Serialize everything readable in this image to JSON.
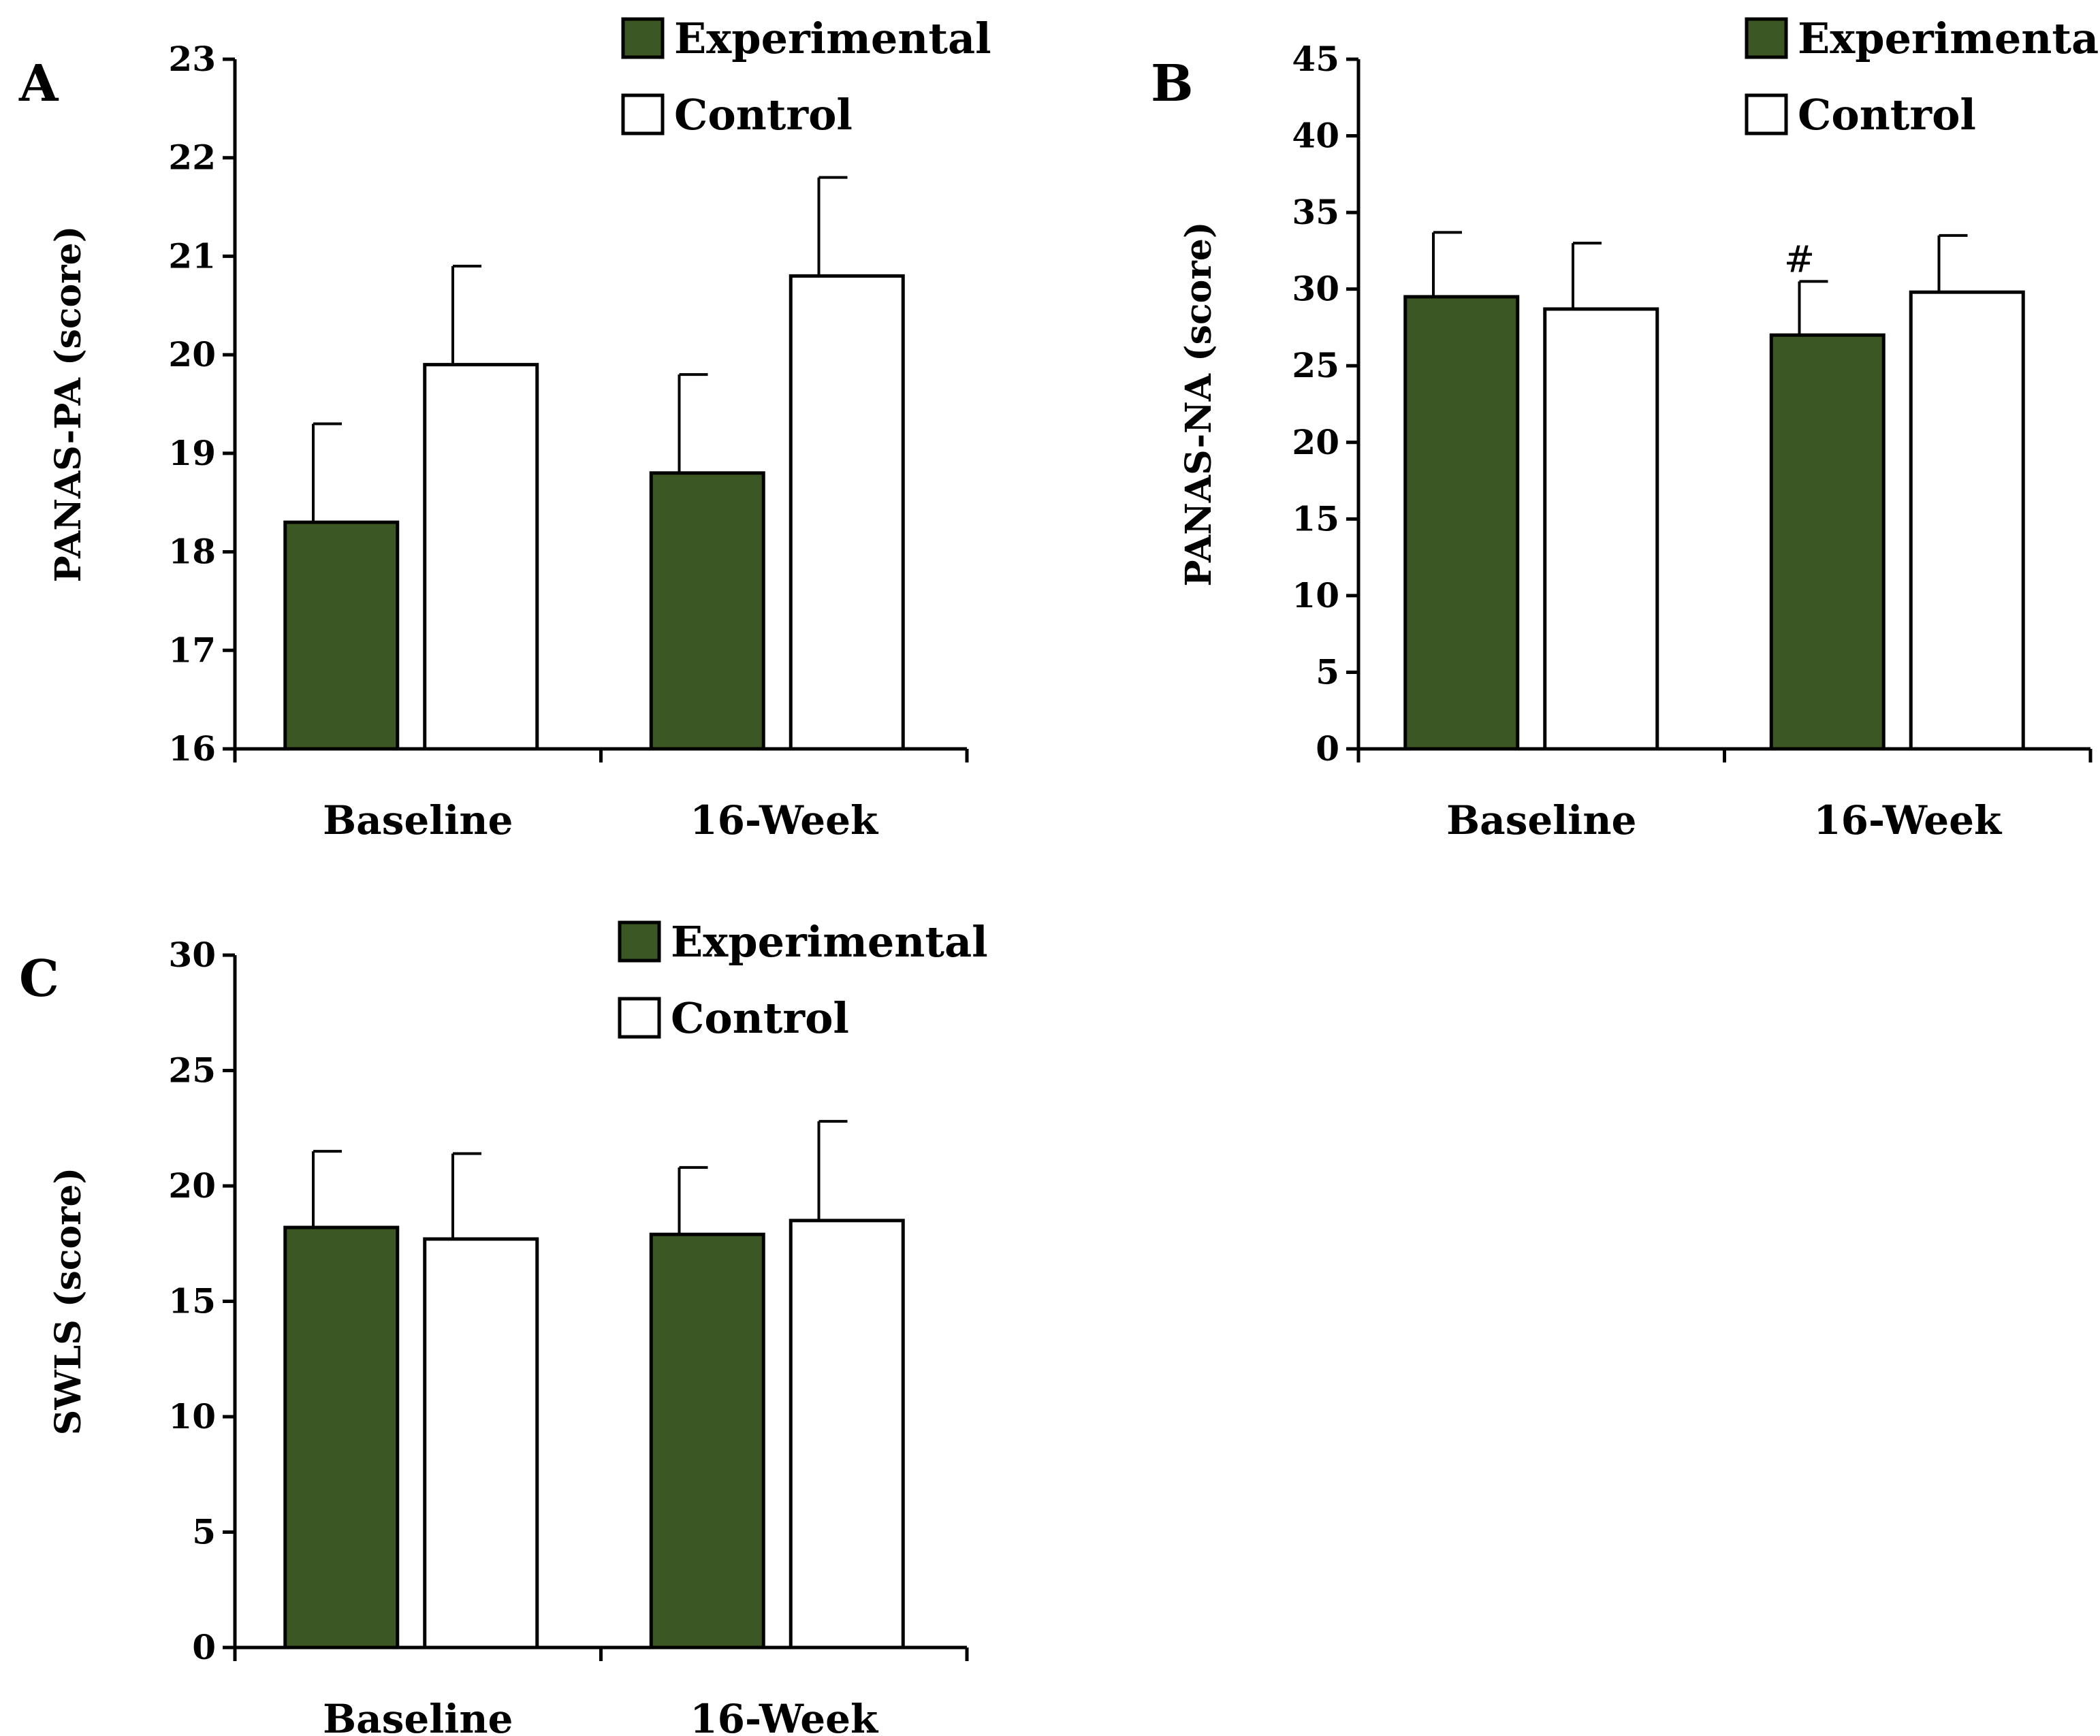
{
  "colors": {
    "experimental": "#3b5723",
    "control": "#ffffff",
    "stroke": "#000000"
  },
  "chart_data": [
    {
      "type": "bar",
      "panel": "A",
      "title": "",
      "ylabel": "PANAS-PA (score)",
      "xlabel": "",
      "ylim": [
        16,
        23
      ],
      "yticks": [
        16,
        17,
        18,
        19,
        20,
        21,
        22,
        23
      ],
      "grid": false,
      "legend_position": "top-right",
      "categories": [
        "Baseline",
        "16-Week"
      ],
      "series": [
        {
          "name": "Experimental",
          "values": [
            18.3,
            18.8
          ],
          "errors": [
            1.0,
            1.0
          ]
        },
        {
          "name": "Control",
          "values": [
            19.9,
            20.8
          ],
          "errors": [
            1.0,
            1.0
          ]
        }
      ],
      "annotations": []
    },
    {
      "type": "bar",
      "panel": "B",
      "title": "",
      "ylabel": "PANAS-NA (score)",
      "xlabel": "",
      "ylim": [
        0,
        45
      ],
      "yticks": [
        0,
        5,
        10,
        15,
        20,
        25,
        30,
        35,
        40,
        45
      ],
      "grid": false,
      "legend_position": "top-right",
      "categories": [
        "Baseline",
        "16-Week"
      ],
      "series": [
        {
          "name": "Experimental",
          "values": [
            29.5,
            27.0
          ],
          "errors": [
            4.2,
            3.5
          ]
        },
        {
          "name": "Control",
          "values": [
            28.7,
            29.8
          ],
          "errors": [
            4.3,
            3.7
          ]
        }
      ],
      "annotations": [
        {
          "text": "#",
          "category": 1,
          "series": 0
        }
      ]
    },
    {
      "type": "bar",
      "panel": "C",
      "title": "",
      "ylabel": "SWLS (score)",
      "xlabel": "",
      "ylim": [
        0,
        30
      ],
      "yticks": [
        0,
        5,
        10,
        15,
        20,
        25,
        30
      ],
      "grid": false,
      "legend_position": "top-right",
      "categories": [
        "Baseline",
        "16-Week"
      ],
      "series": [
        {
          "name": "Experimental",
          "values": [
            18.2,
            17.9
          ],
          "errors": [
            3.3,
            2.9
          ]
        },
        {
          "name": "Control",
          "values": [
            17.7,
            18.5
          ],
          "errors": [
            3.7,
            4.3
          ]
        }
      ],
      "annotations": []
    }
  ]
}
